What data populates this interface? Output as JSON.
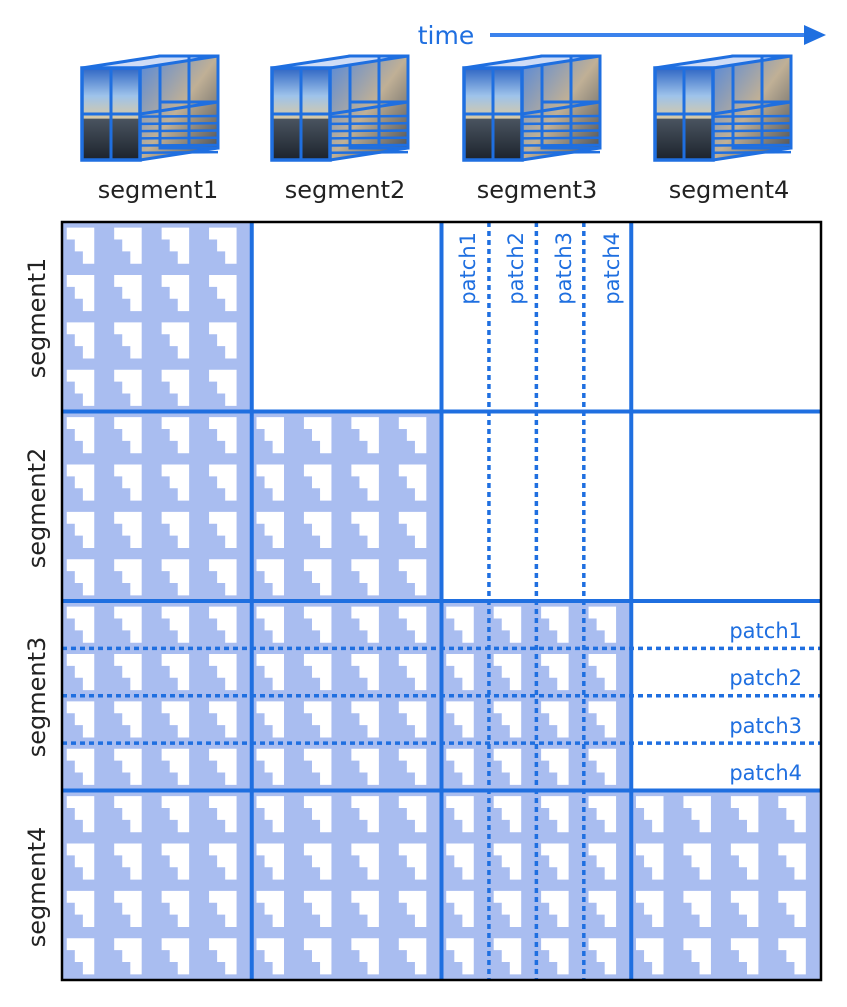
{
  "time_label": "time",
  "segments": [
    "segment1",
    "segment2",
    "segment3",
    "segment4"
  ],
  "patches": [
    "patch1",
    "patch2",
    "patch3",
    "patch4"
  ],
  "colors": {
    "accent": "#1f6fe0",
    "fill": "#a9bdf0",
    "frame": "#000000"
  }
}
